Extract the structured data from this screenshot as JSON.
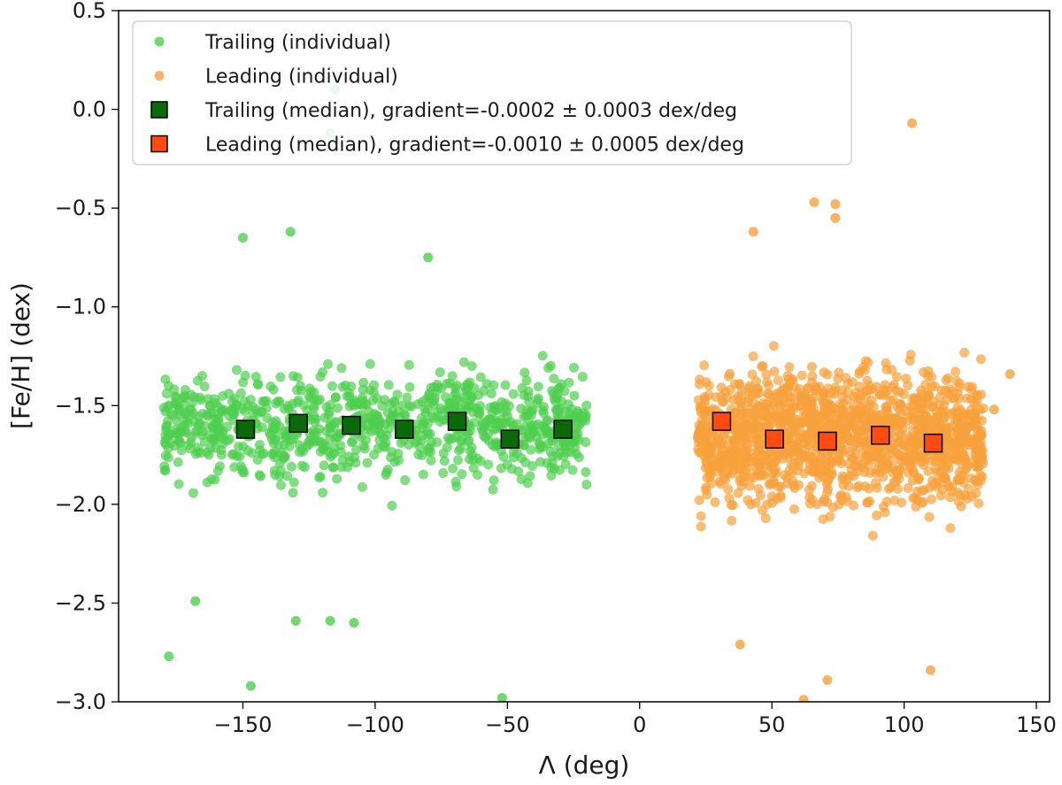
{
  "chart_data": {
    "type": "scatter",
    "xlabel": "Λ (deg)",
    "ylabel": "[Fe/H] (dex)",
    "xlim": [
      -197,
      155
    ],
    "ylim": [
      -3.0,
      0.5
    ],
    "xticks": [
      -150,
      -100,
      -50,
      0,
      50,
      100,
      150
    ],
    "yticks": [
      0.5,
      0.0,
      -0.5,
      -1.0,
      -1.5,
      -2.0,
      -2.5,
      -3.0
    ],
    "xtick_labels": [
      "−150",
      "−100",
      "−50",
      "0",
      "50",
      "100",
      "150"
    ],
    "ytick_labels": [
      "0.5",
      "0.0",
      "−0.5",
      "−1.0",
      "−1.5",
      "−2.0",
      "−2.5",
      "−3.0"
    ],
    "legend_position": "top-left",
    "legend": [
      {
        "label": "Trailing (individual)",
        "marker": "circle",
        "color": "#4fcf4f"
      },
      {
        "label": "Leading (individual)",
        "marker": "circle",
        "color": "#f7a13c"
      },
      {
        "label": "Trailing (median), gradient=-0.0002 ± 0.0003 dex/deg",
        "marker": "square",
        "color": "#0a6a0a"
      },
      {
        "label": "Leading (median), gradient=-0.0010 ± 0.0005 dex/deg",
        "marker": "square",
        "color": "#ff4a10"
      }
    ],
    "series": [
      {
        "name": "Trailing (individual)",
        "color": "#4fcf4f",
        "x_range": [
          -180,
          -20
        ],
        "y_center": -1.6,
        "y_spread": 0.25,
        "n_points": 900,
        "outliers": [
          {
            "x": -115,
            "y": 0.1
          },
          {
            "x": -117,
            "y": -0.12
          },
          {
            "x": -132,
            "y": -0.62
          },
          {
            "x": -80,
            "y": -0.75
          },
          {
            "x": -150,
            "y": -0.65
          },
          {
            "x": -178,
            "y": -2.77
          },
          {
            "x": -147,
            "y": -2.92
          },
          {
            "x": -52,
            "y": -2.98
          },
          {
            "x": -168,
            "y": -2.49
          },
          {
            "x": -108,
            "y": -2.6
          },
          {
            "x": -130,
            "y": -2.59
          },
          {
            "x": -117,
            "y": -2.59
          }
        ]
      },
      {
        "name": "Leading (individual)",
        "color": "#f7a13c",
        "x_range": [
          22,
          130
        ],
        "y_center": -1.65,
        "y_spread": 0.3,
        "n_points": 1500,
        "outliers": [
          {
            "x": 103,
            "y": -0.07
          },
          {
            "x": 66,
            "y": -0.47
          },
          {
            "x": 74,
            "y": -0.48
          },
          {
            "x": 74,
            "y": -0.55
          },
          {
            "x": 43,
            "y": -0.62
          },
          {
            "x": 140,
            "y": -1.34
          },
          {
            "x": 134,
            "y": -1.52
          },
          {
            "x": 110,
            "y": -2.84
          },
          {
            "x": 62,
            "y": -2.99
          },
          {
            "x": 71,
            "y": -2.89
          },
          {
            "x": 38,
            "y": -2.71
          }
        ]
      },
      {
        "name": "Trailing (median), gradient=-0.0002 ± 0.0003 dex/deg",
        "color": "#0a6a0a",
        "x": [
          -149,
          -129,
          -109,
          -89,
          -69,
          -49,
          -29
        ],
        "y": [
          -1.62,
          -1.59,
          -1.6,
          -1.62,
          -1.58,
          -1.67,
          -1.62
        ]
      },
      {
        "name": "Leading (median), gradient=-0.0010 ± 0.0005 dex/deg",
        "color": "#ff4a10",
        "x": [
          31,
          51,
          71,
          91,
          111
        ],
        "y": [
          -1.58,
          -1.67,
          -1.68,
          -1.65,
          -1.69
        ]
      }
    ]
  }
}
